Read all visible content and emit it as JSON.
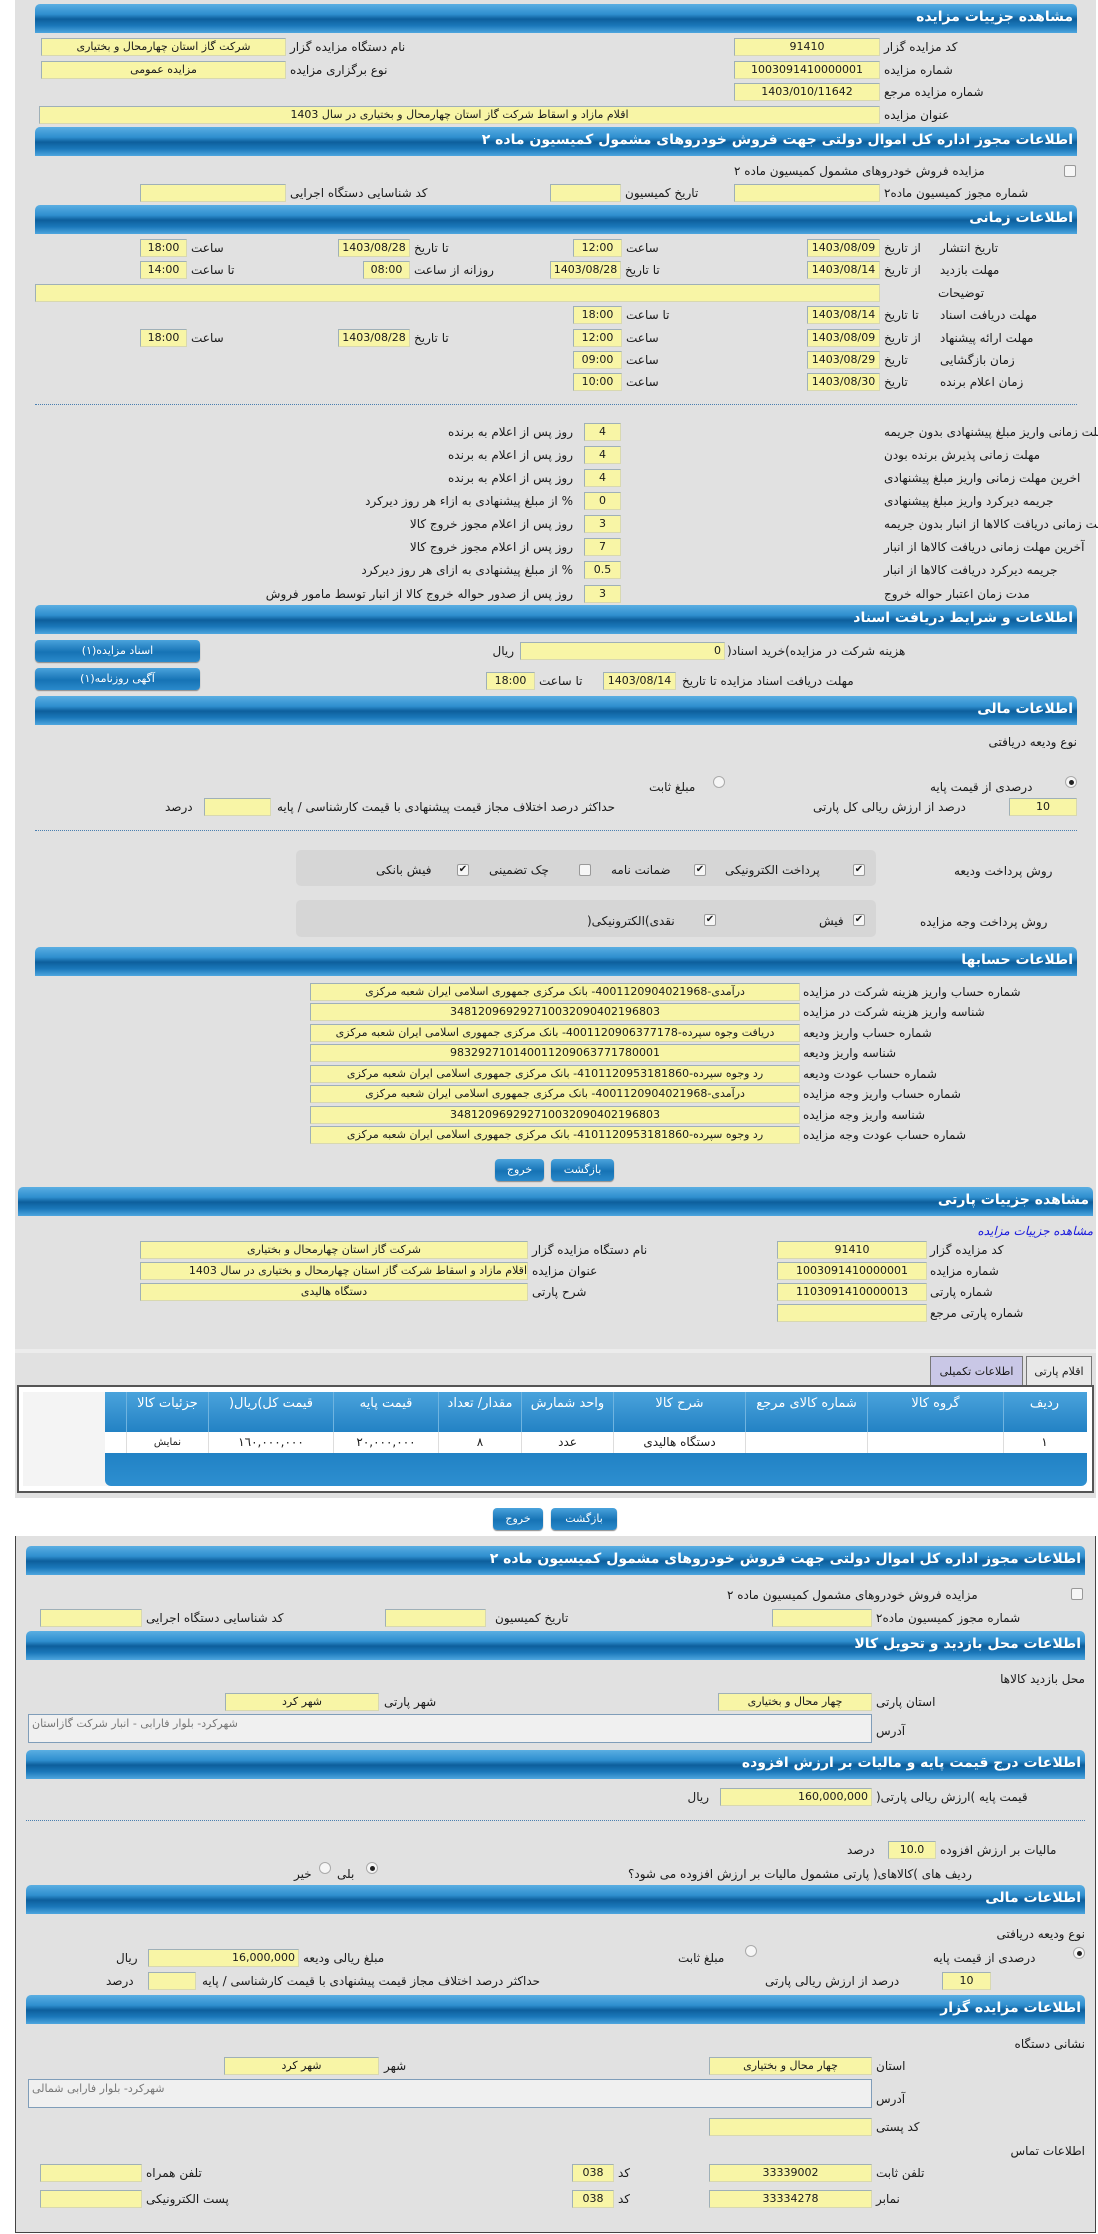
{
  "auction": {
    "header": "مشاهده جزییات مزایده",
    "organizer_code_label": "کد مزایده گزار",
    "organizer_code": "91410",
    "org_name_label": "نام دستگاه مزایده گزار",
    "org_name": "شرکت گاز استان چهارمحال و بختیاری",
    "number_label": "شماره مزایده",
    "number": "1003091410000001",
    "type_label": "نوع برگزاری مزایده",
    "type": "مزایده عمومی",
    "ref_label": "شماره مزایده مرجع",
    "ref": "1403/010/11642",
    "title_label": "عنوان مزایده",
    "title": "اقلام مازاد و اسقاط شرکت گاز استان چهارمحال و بختیاری در سال 1403"
  },
  "permit": {
    "header": "اطلاعات مجوز اداره کل اموال دولتی جهت فروش خودروهای مشمول کمیسیون ماده ۲",
    "checkbox_label": "مزایده فروش خودروهای مشمول کمیسیون ماده ۲",
    "checked": false,
    "permit_no_label": "شماره مجوز کمیسیون ماده۲",
    "commission_date_label": "تاریخ کمیسیون",
    "exec_code_label": "کد شناسایی دستگاه اجرایی"
  },
  "timing": {
    "header": "اطلاعات زمانی",
    "publish": {
      "label": "تاریخ انتشار",
      "from_label": "از تاریخ",
      "from": "1403/08/09",
      "time_label": "ساعت",
      "time": "12:00",
      "to_label": "تا تاریخ",
      "to": "1403/08/28",
      "time2_label": "ساعت",
      "time2": "18:00"
    },
    "visit": {
      "label": "مهلت بازدید",
      "from_label": "از تاریخ",
      "from": "1403/08/14",
      "to_label": "تا تاریخ",
      "to": "1403/08/28",
      "daily_label": "روزانه از ساعت",
      "daily_from": "08:00",
      "until_label": "تا ساعت",
      "daily_to": "14:00"
    },
    "notes_label": "توضیحات",
    "notes": "",
    "docs": {
      "label": "مهلت دریافت اسناد",
      "date_label": "تا تاریخ",
      "date": "1403/08/14",
      "time_label": "تا ساعت",
      "time": "18:00"
    },
    "offer": {
      "label": "مهلت ارائه پیشنهاد",
      "from_label": "از تاریخ",
      "from": "1403/08/09",
      "time_label": "ساعت",
      "time": "12:00",
      "to_label": "تا تاریخ",
      "to": "1403/08/28",
      "time2_label": "ساعت",
      "time2": "18:00"
    },
    "opening": {
      "label": "زمان بازگشایی",
      "date_label": "تاریخ",
      "date": "1403/08/29",
      "time_label": "ساعت",
      "time": "09:00"
    },
    "winner": {
      "label": "زمان اعلام برنده",
      "date_label": "تاریخ",
      "date": "1403/08/30",
      "time_label": "ساعت",
      "time": "10:00"
    }
  },
  "rules": [
    {
      "label": "مهلت زمانی واریز مبلغ پیشنهادی بدون جریمه",
      "value": "4",
      "suffix": "روز پس از اعلام به برنده"
    },
    {
      "label": "مهلت زمانی پذیرش برنده بودن",
      "value": "4",
      "suffix": "روز پس از اعلام به برنده"
    },
    {
      "label": "اخرین مهلت زمانی واریز مبلغ پیشنهادی",
      "value": "4",
      "suffix": "روز پس از اعلام به برنده"
    },
    {
      "label": "جریمه دیرکرد واریز مبلغ پیشنهادی",
      "value": "0",
      "suffix": "% از مبلغ پیشنهادی به ازاء هر روز دیرکرد"
    },
    {
      "label": "مهلت زمانی دریافت کالاها از انبار بدون جریمه",
      "value": "3",
      "suffix": "روز پس از اعلام مجوز خروج کالا"
    },
    {
      "label": "آخرین مهلت زمانی دریافت کالاها از انبار",
      "value": "7",
      "suffix": "روز پس از اعلام مجوز خروج کالا"
    },
    {
      "label": "جریمه دیرکرد دریافت کالاها از انبار",
      "value": "0.5",
      "suffix": "% از مبلغ پیشنهادی به ازای هر روز دیرکرد"
    },
    {
      "label": "مدت زمان اعتبار حواله خروج",
      "value": "3",
      "suffix": "روز پس از صدور حواله خروج کالا از انبار توسط مامور فروش"
    }
  ],
  "documents": {
    "header": "اطلاعات و شرایط دریافت اسناد",
    "fee_label": "هزینه شرکت در مزایده)خرید اسناد(",
    "fee": "0",
    "fee_unit": "ریال",
    "deadline_label": "مهلت دریافت اسناد مزایده تا تاریخ",
    "deadline_date": "1403/08/14",
    "deadline_time_label": "تا ساعت",
    "deadline_time": "18:00",
    "docs_button": "اسناد مزایده(۱)",
    "ad_button": "آگهی روزنامه(۱)"
  },
  "finance": {
    "header": "اطلاعات مالی",
    "deposit_type_label": "نوع ودیعه دریافتی",
    "percent_option": "درصدی از قیمت پایه",
    "fixed_option": "مبلغ ثابت",
    "selected": "percent",
    "percent": "10",
    "percent_label": "درصد از ارزش ریالی کل پارتی",
    "max_diff_label": "حداکثر درصد اختلاف مجاز قیمت پیشنهادی با قیمت کارشناسی / پایه",
    "max_diff": "",
    "max_diff_unit": "درصد",
    "deposit_methods_label": "روش پرداخت ودیعه",
    "deposit_methods": [
      {
        "label": "پرداخت الکترونیکی",
        "checked": true
      },
      {
        "label": "ضمانت نامه",
        "checked": true
      },
      {
        "label": "چک تضمینی",
        "checked": false
      },
      {
        "label": "فیش بانکی",
        "checked": true
      }
    ],
    "payment_methods_label": "روش پرداخت وجه مزایده",
    "payment_methods": [
      {
        "label": "فیش",
        "checked": true
      },
      {
        "label": "نقدی)الکترونیکی(",
        "checked": true
      }
    ]
  },
  "accounts": {
    "header": "اطلاعات حسابها",
    "rows": [
      {
        "label": "شماره حساب واریز هزینه شرکت در مزایده",
        "value": "درآمدی-4001120904021968- بانک مرکزی جمهوری اسلامی ایران شعبه مرکزی"
      },
      {
        "label": "شناسه واریز هزینه شرکت در مزایده",
        "value": "348120969292710032090402196803"
      },
      {
        "label": "شماره حساب واریز ودیعه",
        "value": "دریافت وجوه سپرده-4001120906377178- بانک مرکزی جمهوری اسلامی ایران شعبه مرکزی"
      },
      {
        "label": "شناسه واریز ودیعه",
        "value": "983292710140011209063771780001"
      },
      {
        "label": "شماره حساب عودت ودیعه",
        "value": "رد وجوه سپرده-4101120953181860- بانک مرکزی جمهوری اسلامی ایران شعبه مرکزی"
      },
      {
        "label": "شماره حساب واریز وجه مزایده",
        "value": "درآمدی-4001120904021968- بانک مرکزی جمهوری اسلامی ایران شعبه مرکزی"
      },
      {
        "label": "شناسه واریز وجه مزایده",
        "value": "348120969292710032090402196803"
      },
      {
        "label": "شماره حساب عودت وجه مزایده",
        "value": "رد وجوه سپرده-4101120953181860- بانک مرکزی جمهوری اسلامی ایران شعبه مرکزی"
      }
    ]
  },
  "buttons": {
    "back": "بازگشت",
    "exit": "خروج"
  },
  "lot": {
    "header": "مشاهده جزییات پارتی",
    "auction_link": "مشاهده جزییات مزایده",
    "organizer_code_label": "کد مزایده گزار",
    "organizer_code": "91410",
    "org_name_label": "نام دستگاه مزایده گزار",
    "org_name": "شرکت گاز استان چهارمحال و بختیاری",
    "number_label": "شماره مزایده",
    "number": "1003091410000001",
    "title_label": "عنوان مزایده",
    "title": "اقلام مازاد و اسقاط شرکت گاز استان چهارمحال و بختیاری در سال 1403",
    "lot_no_label": "شماره پارتی",
    "lot_no": "1103091410000013",
    "desc_label": "شرح پارتی",
    "desc": "دستگاه هالیدی",
    "lot_ref_label": "شماره پارتی مرجع",
    "lot_ref": "",
    "tabs": [
      {
        "label": "اقلام پارتی",
        "active": false
      },
      {
        "label": "اطلاعات تکمیلی",
        "active": true
      }
    ],
    "table": {
      "columns": [
        "ردیف",
        "گروه کالا",
        "شماره کالای مرجع",
        "شرح کالا",
        "واحد شمارش",
        "مقدار/ تعداد",
        "قیمت پایه",
        "قیمت کل)ریال(",
        "جزئیات کالا"
      ],
      "rows": [
        [
          "١",
          "",
          "",
          "دستگاه هالیدی",
          "عدد",
          "٨",
          "٢٠,٠٠٠,٠٠٠",
          "١٦٠,٠٠٠,٠٠٠",
          "نمایش"
        ]
      ]
    }
  },
  "lot_info": {
    "permit": {
      "header": "اطلاعات مجوز اداره کل اموال دولتی جهت فروش خودروهای مشمول کمیسیون ماده ۲",
      "checkbox_label": "مزایده فروش خودروهای مشمول کمیسیون ماده ۲",
      "checked": false,
      "permit_no_label": "شماره مجوز کمیسیون ماده۲",
      "commission_date_label": "تاریخ کمیسیون",
      "exec_code_label": "کد شناسایی دستگاه اجرایی"
    },
    "visit": {
      "header": "اطلاعات محل بازدید و تحویل کالا",
      "place_label": "محل بازدید کالاها",
      "province_label": "استان پارتی",
      "province": "چهار محال و بختیاری",
      "city_label": "شهر پارتی",
      "city": "شهر کرد",
      "address_label": "آدرس",
      "address": "شهرکرد- بلوار فارابی - انبار شرکت گازاستان"
    },
    "price": {
      "header": "اطلاعات درج قیمت پایه و مالیات بر ارزش افزوده",
      "base_label": "قیمت پایه )ارزش ریالی پارتی(",
      "base": "160,000,000",
      "unit": "ریال",
      "vat_label": "مالیات بر ارزش افزوده",
      "vat": "10.0",
      "vat_unit": "درصد",
      "vat_q": "ردیف های )کالاهای( پارتی مشمول مالیات بر ارزش افزوده می شود؟",
      "yes": "بلی",
      "no": "خیر",
      "selected": "yes"
    },
    "finance": {
      "header": "اطلاعات مالی",
      "deposit_type_label": "نوع ودیعه دریافتی",
      "percent_option": "درصدی از قیمت پایه",
      "fixed_option": "مبلغ ثابت",
      "selected": "percent",
      "amount_label": "مبلغ ریالی ودیعه",
      "amount": "16,000,000",
      "unit": "ریال",
      "percent": "10",
      "percent_label": "درصد از ارزش ریالی پارتی",
      "max_diff_label": "حداکثر درصد اختلاف مجاز قیمت پیشنهادی با قیمت کارشناسی / پایه",
      "max_diff": "",
      "max_diff_unit": "درصد"
    },
    "organizer": {
      "header": "اطلاعات مزایده گزار",
      "address_title": "نشانی دستگاه",
      "province_label": "استان",
      "province": "چهار محال و بختیاری",
      "city_label": "شهر",
      "city": "شهر کرد",
      "address_label": "آدرس",
      "address": "شهرکرد- بلوار فارابی شمالی",
      "postal_label": "کد پستی",
      "postal": "",
      "contact_title": "اطلاعات تماس",
      "phone_label": "تلفن ثابت",
      "phone": "33339002",
      "code_label": "کد",
      "phone_code": "038",
      "mobile_label": "تلفن همراه",
      "mobile": "",
      "fax_label": "نمابر",
      "fax": "33334278",
      "fax_code": "038",
      "email_label": "پست الکترونیکی",
      "email": ""
    }
  }
}
